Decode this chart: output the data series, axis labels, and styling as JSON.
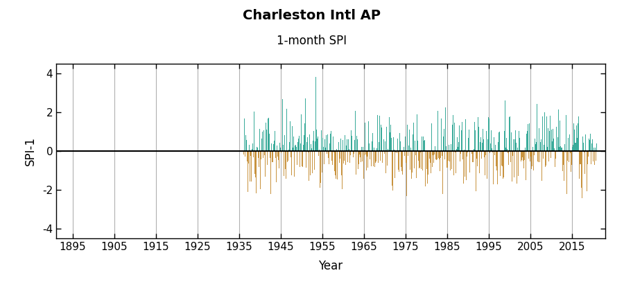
{
  "title": "Charleston Intl AP",
  "subtitle": "1-month SPI",
  "ylabel": "SPI-1",
  "xlabel": "Year",
  "ylim": [
    -4.5,
    4.5
  ],
  "yticks": [
    -4,
    -2,
    0,
    2,
    4
  ],
  "xlim": [
    1891,
    2023
  ],
  "xticks": [
    1895,
    1905,
    1915,
    1925,
    1935,
    1945,
    1955,
    1965,
    1975,
    1985,
    1995,
    2005,
    2015
  ],
  "data_start_year": 1936,
  "data_end_year": 2020,
  "color_positive": "#3aab9a",
  "color_negative": "#c8933f",
  "zero_line_color": "#000000",
  "grid_color": "#b0b0b0",
  "background_color": "#ffffff",
  "title_fontsize": 14,
  "subtitle_fontsize": 12,
  "label_fontsize": 12,
  "tick_fontsize": 11,
  "random_seed": 42
}
